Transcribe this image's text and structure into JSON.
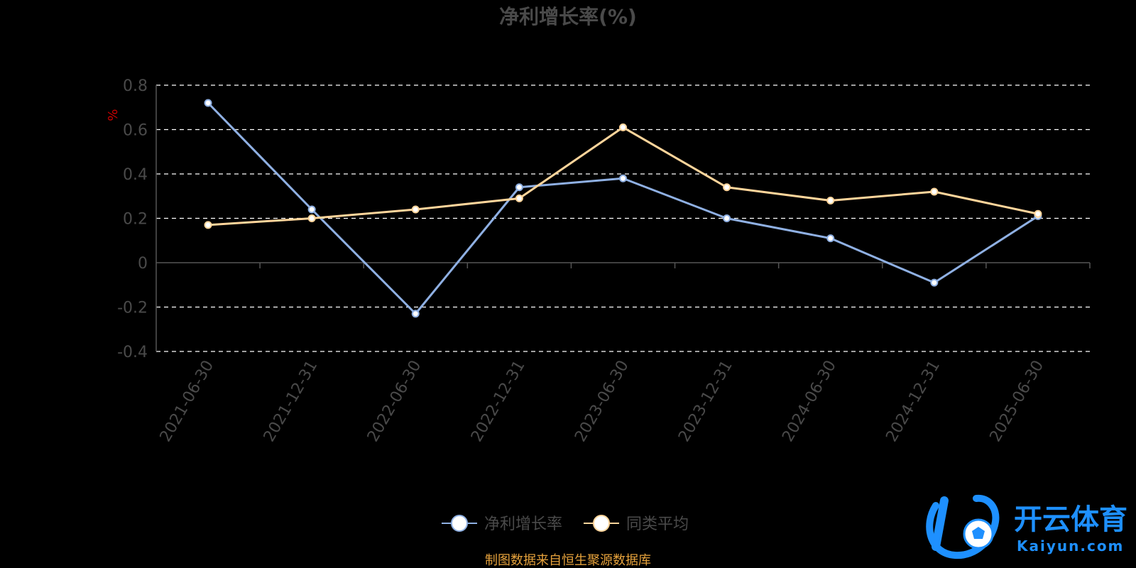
{
  "colors": {
    "background": "#000000",
    "axis": "#555555",
    "grid": "#ffffff",
    "text": "#4a4a4a",
    "unit": "#cc0000",
    "source": "#e6a23c",
    "logo": "#1e90ff"
  },
  "chart_data": {
    "type": "line",
    "title": "净利增长率(%)",
    "ylabel": "%",
    "xlabel": "",
    "ylim": [
      -0.4,
      0.8
    ],
    "yticks": [
      -0.4,
      -0.2,
      0,
      0.2,
      0.4,
      0.6,
      0.8
    ],
    "ytick_labels": [
      "-0.4",
      "-0.2",
      "0",
      "0.2",
      "0.4",
      "0.6",
      "0.8"
    ],
    "grid": true,
    "legend_position": "bottom-center",
    "categories": [
      "2021-06-30",
      "2021-12-31",
      "2022-06-30",
      "2022-12-31",
      "2023-06-30",
      "2023-12-31",
      "2024-06-30",
      "2024-12-31",
      "2025-06-30"
    ],
    "series": [
      {
        "name": "净利增长率",
        "color": "#8fb0e3",
        "values": [
          0.72,
          0.24,
          -0.23,
          0.34,
          0.38,
          0.2,
          0.11,
          -0.09,
          0.21
        ]
      },
      {
        "name": "同类平均",
        "color": "#ffd59b",
        "values": [
          0.17,
          0.2,
          0.24,
          0.29,
          0.61,
          0.34,
          0.28,
          0.32,
          0.22
        ]
      }
    ]
  },
  "footer": {
    "source": "制图数据来自恒生聚源数据库"
  },
  "logo": {
    "name": "开云体育",
    "url_text": "Kaiyun.com"
  }
}
